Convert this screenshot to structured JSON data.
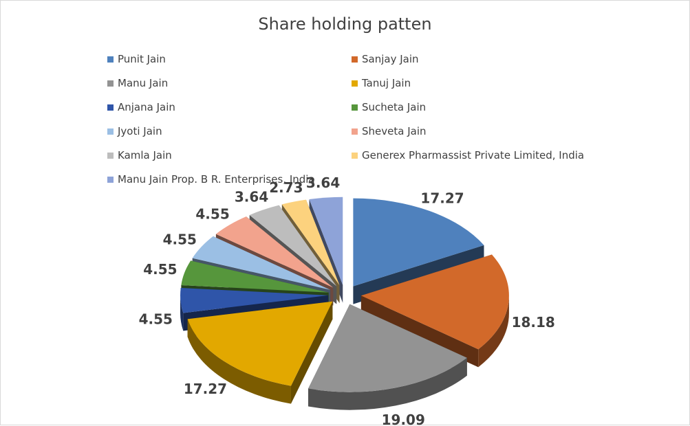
{
  "chart_data": {
    "type": "pie",
    "title": "Share holding patten",
    "legend_position": "top",
    "style": "3d-exploded",
    "slices": [
      {
        "label": "Punit Jain",
        "value": 17.27,
        "value_label": "17.27",
        "color": "#4f81bd"
      },
      {
        "label": "Sanjay Jain",
        "value": 18.18,
        "value_label": "18.18",
        "color": "#d2692a"
      },
      {
        "label": "Manu Jain",
        "value": 19.09,
        "value_label": "19.09",
        "color": "#939393"
      },
      {
        "label": "Tanuj Jain",
        "value": 17.27,
        "value_label": "17.27",
        "color": "#e2a800"
      },
      {
        "label": "Anjana Jain",
        "value": 4.55,
        "value_label": "4.55",
        "color": "#2f55a9"
      },
      {
        "label": "Sucheta Jain",
        "value": 4.55,
        "value_label": "4.55",
        "color": "#56963c"
      },
      {
        "label": "Jyoti Jain",
        "value": 4.55,
        "value_label": "4.55",
        "color": "#9bbfe4"
      },
      {
        "label": "Sheveta Jain",
        "value": 4.55,
        "value_label": "4.55",
        "color": "#f2a38d"
      },
      {
        "label": "Kamla Jain",
        "value": 3.64,
        "value_label": "3.64",
        "color": "#bdbdbd"
      },
      {
        "label": "Generex Pharmassist Private Limited, India",
        "value": 2.73,
        "value_label": "2.73",
        "color": "#fcd27e"
      },
      {
        "label": "Manu Jain Prop. B R. Enterprises, India",
        "value": 3.64,
        "value_label": "3.64",
        "color": "#8ea3d8"
      }
    ]
  }
}
